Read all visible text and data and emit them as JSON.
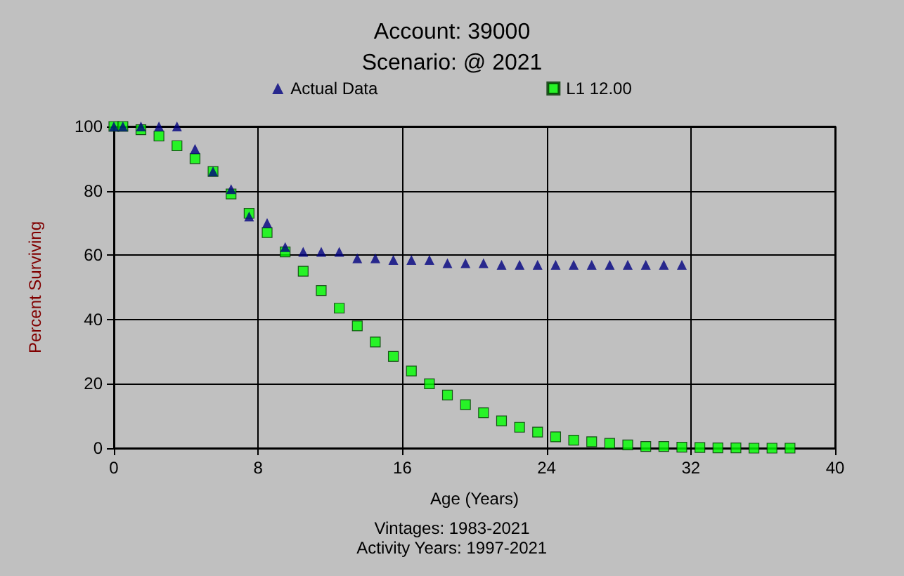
{
  "chart_data": {
    "type": "scatter",
    "title": "Account: 39000",
    "subtitle": "Scenario: @ 2021",
    "xlabel": "Age (Years)",
    "ylabel": "Percent Surviving",
    "annotations": [
      "Vintages: 1983-2021",
      "Activity Years: 1997-2021"
    ],
    "xlim": [
      0,
      40
    ],
    "xticks": [
      0,
      8,
      16,
      24,
      32,
      40
    ],
    "ylim": [
      0,
      100
    ],
    "yticks": [
      0,
      20,
      40,
      60,
      80,
      100
    ],
    "grid": true,
    "legend": "top",
    "series": [
      {
        "name": "Actual Data",
        "color": "#000080",
        "marker": "triangle",
        "x": [
          0,
          0.5,
          1.5,
          2.5,
          3.5,
          4.5,
          5.5,
          6.5,
          7.5,
          8.5,
          9.5,
          10.5,
          11.5,
          12.5,
          13.5,
          14.5,
          15.5,
          16.5,
          17.5,
          18.5,
          19.5,
          20.5,
          21.5,
          22.5,
          23.5,
          24.5,
          25.5,
          26.5,
          27.5,
          28.5,
          29.5,
          30.5,
          31.5
        ],
        "values": [
          100,
          100,
          100,
          100,
          100,
          93,
          86,
          80.5,
          72,
          70,
          62.5,
          61,
          61,
          61,
          59,
          59,
          58.5,
          58.5,
          58.5,
          57.5,
          57.5,
          57.5,
          57,
          57,
          57,
          57,
          57,
          57,
          57,
          57,
          57,
          57,
          57
        ]
      },
      {
        "name": "L1 12.00",
        "color": "#00ff00",
        "marker": "square",
        "x": [
          0,
          0.5,
          1.5,
          2.5,
          3.5,
          4.5,
          5.5,
          6.5,
          7.5,
          8.5,
          9.5,
          10.5,
          11.5,
          12.5,
          13.5,
          14.5,
          15.5,
          16.5,
          17.5,
          18.5,
          19.5,
          20.5,
          21.5,
          22.5,
          23.5,
          24.5,
          25.5,
          26.5,
          27.5,
          28.5,
          29.5,
          30.5,
          31.5,
          32.5,
          33.5,
          34.5,
          35.5,
          36.5,
          37.5
        ],
        "values": [
          100,
          100,
          99,
          97,
          94,
          90,
          86,
          79,
          73,
          67,
          61,
          55,
          49,
          43.5,
          38,
          33,
          28.5,
          24,
          20,
          16.5,
          13.5,
          11,
          8.5,
          6.5,
          5,
          3.5,
          2.5,
          2,
          1.5,
          1,
          0.5,
          0.5,
          0.3,
          0.2,
          0.1,
          0.1,
          0,
          0,
          0
        ]
      }
    ]
  }
}
